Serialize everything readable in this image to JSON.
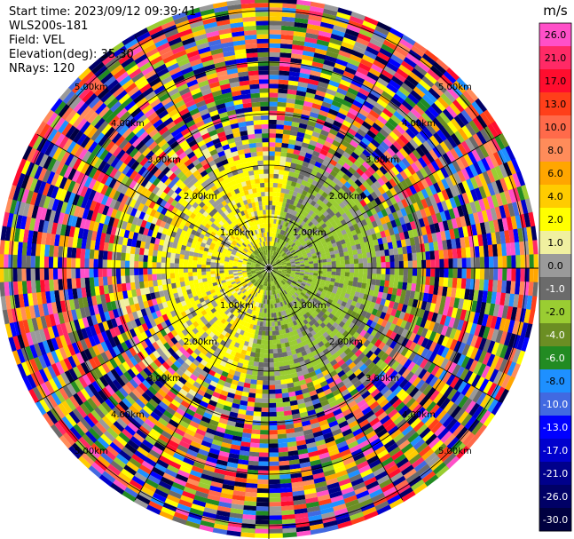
{
  "header": {
    "start_time": "Start time: 2023/09/12 09:39:41",
    "instrument": "WLS200s-181",
    "field": "Field: VEL",
    "elevation": "Elevation(deg): 35.30",
    "nrays": "NRays: 120"
  },
  "chart_data": {
    "type": "heatmap",
    "projection": "polar PPI",
    "range_rings_labels": [
      "1.00km",
      "2.00km",
      "3.00km",
      "4.00km",
      "5.00km"
    ],
    "colorbar": {
      "unit": "m/s",
      "ticks": [
        "26.0",
        "21.0",
        "17.0",
        "13.0",
        "10.0",
        "8.0",
        "6.0",
        "4.0",
        "2.0",
        "1.0",
        "0.0",
        "-1.0",
        "-2.0",
        "-4.0",
        "-6.0",
        "-8.0",
        "-10.0",
        "-13.0",
        "-17.0",
        "-21.0",
        "-26.0",
        "-30.0"
      ],
      "colors": [
        "#ff50c8",
        "#ff2a66",
        "#ff0d2e",
        "#ff3f1a",
        "#ff6a4a",
        "#ff8c5a",
        "#ffa600",
        "#ffcc00",
        "#ffff00",
        "#f0f0a0",
        "#9a9a9a",
        "#6b6b6b",
        "#9acd32",
        "#6b8e23",
        "#228b22",
        "#1e90ff",
        "#4169e1",
        "#0000ff",
        "#0000cd",
        "#00008b",
        "#000066",
        "#000040"
      ]
    }
  }
}
